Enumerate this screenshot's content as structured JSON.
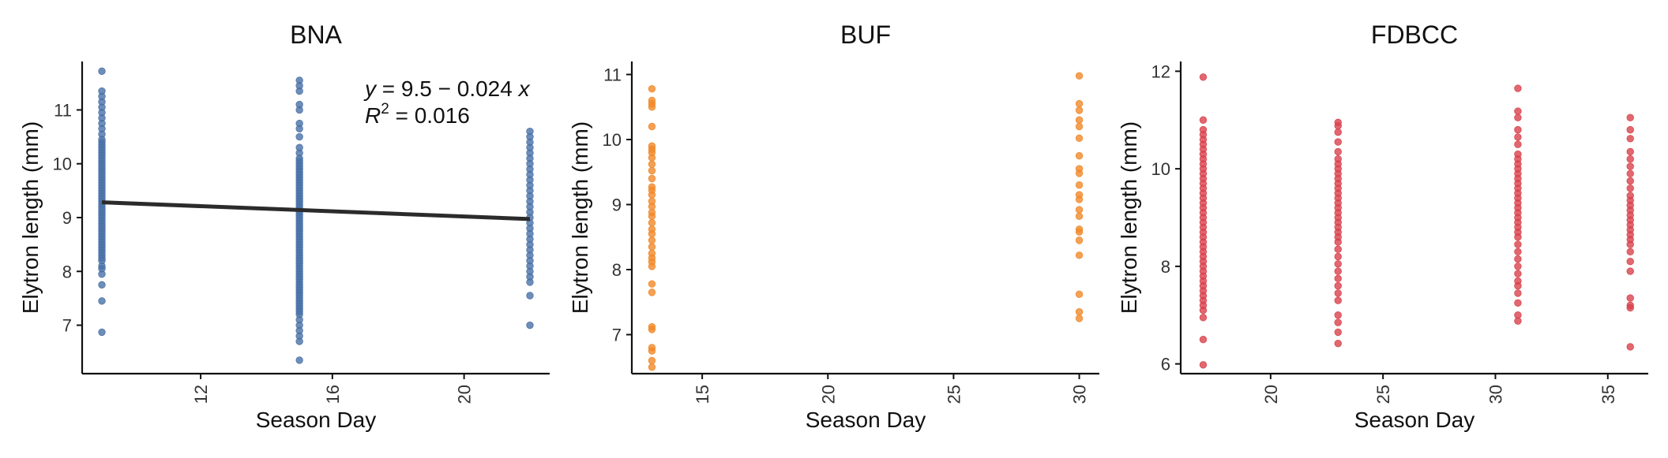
{
  "chart_data": [
    {
      "type": "scatter",
      "title": "BNA",
      "xlabel": "Season Day",
      "ylabel": "Elytron length (mm)",
      "xlim": [
        8.4,
        22.6
      ],
      "ylim": [
        6.1,
        11.9
      ],
      "xticks": [
        12,
        16,
        20
      ],
      "yticks": [
        7,
        8,
        9,
        10,
        11
      ],
      "color": "#4a72a8",
      "grid": false,
      "fit": {
        "slope": -0.024,
        "intercept": 9.5,
        "x_range": [
          9,
          22
        ]
      },
      "equation": {
        "y_label": "y",
        "formula": " = 9.5 − 0.024 ",
        "x_label": "x",
        "r2_label": "R",
        "r2_sup": "2",
        "r2_value": " = 0.016"
      },
      "series": [
        {
          "x": 9,
          "values": [
            6.87,
            7.45,
            7.75,
            7.95,
            8.05,
            8.1,
            8.2,
            8.25,
            8.3,
            8.35,
            8.4,
            8.45,
            8.5,
            8.55,
            8.6,
            8.65,
            8.7,
            8.75,
            8.8,
            8.85,
            8.9,
            8.95,
            9.0,
            9.05,
            9.1,
            9.15,
            9.2,
            9.25,
            9.3,
            9.35,
            9.4,
            9.45,
            9.5,
            9.55,
            9.6,
            9.65,
            9.7,
            9.75,
            9.8,
            9.85,
            9.9,
            9.95,
            10.0,
            10.05,
            10.1,
            10.15,
            10.2,
            10.25,
            10.3,
            10.35,
            10.4,
            10.45,
            10.55,
            10.65,
            10.75,
            10.85,
            10.95,
            11.05,
            11.15,
            11.25,
            11.35,
            11.72
          ]
        },
        {
          "x": 15,
          "values": [
            6.35,
            6.7,
            6.8,
            6.9,
            7.0,
            7.1,
            7.2,
            7.25,
            7.3,
            7.35,
            7.4,
            7.45,
            7.5,
            7.55,
            7.6,
            7.65,
            7.7,
            7.75,
            7.8,
            7.85,
            7.9,
            7.95,
            8.0,
            8.05,
            8.1,
            8.15,
            8.2,
            8.25,
            8.3,
            8.35,
            8.4,
            8.45,
            8.5,
            8.55,
            8.6,
            8.65,
            8.7,
            8.75,
            8.8,
            8.85,
            8.9,
            8.95,
            9.0,
            9.05,
            9.1,
            9.15,
            9.2,
            9.25,
            9.3,
            9.35,
            9.4,
            9.45,
            9.5,
            9.55,
            9.6,
            9.65,
            9.7,
            9.75,
            9.8,
            9.85,
            9.9,
            9.95,
            10.0,
            10.05,
            10.1,
            10.2,
            10.3,
            10.5,
            10.65,
            10.75,
            11.0,
            11.1,
            11.35,
            11.45,
            11.55
          ]
        },
        {
          "x": 22,
          "values": [
            7.0,
            7.55,
            7.8,
            7.9,
            8.0,
            8.1,
            8.2,
            8.3,
            8.4,
            8.5,
            8.6,
            8.7,
            8.8,
            8.9,
            9.0,
            9.1,
            9.2,
            9.3,
            9.4,
            9.5,
            9.6,
            9.7,
            9.8,
            9.9,
            10.0,
            10.1,
            10.2,
            10.3,
            10.4,
            10.5,
            10.6
          ]
        }
      ]
    },
    {
      "type": "scatter",
      "title": "BUF",
      "xlabel": "Season Day",
      "ylabel": "Elytron length (mm)",
      "xlim": [
        12.2,
        30.8
      ],
      "ylim": [
        6.4,
        11.2
      ],
      "xticks": [
        15,
        20,
        25,
        30
      ],
      "yticks": [
        7,
        8,
        9,
        10,
        11
      ],
      "color": "#f08a2c",
      "grid": false,
      "series": [
        {
          "x": 13,
          "values": [
            6.5,
            6.6,
            6.75,
            6.8,
            7.08,
            7.12,
            7.65,
            7.78,
            8.05,
            8.12,
            8.18,
            8.25,
            8.35,
            8.45,
            8.55,
            8.62,
            8.72,
            8.82,
            8.88,
            8.97,
            9.05,
            9.15,
            9.22,
            9.27,
            9.4,
            9.52,
            9.62,
            9.72,
            9.8,
            9.85,
            9.9,
            10.2,
            10.5,
            10.55,
            10.6,
            10.78
          ]
        },
        {
          "x": 30,
          "values": [
            7.25,
            7.35,
            7.62,
            8.22,
            8.45,
            8.58,
            8.62,
            8.82,
            8.92,
            9.08,
            9.15,
            9.3,
            9.48,
            9.55,
            9.75,
            10.02,
            10.2,
            10.3,
            10.45,
            10.55,
            10.98
          ]
        }
      ]
    },
    {
      "type": "scatter",
      "title": "FDBCC",
      "xlabel": "Season Day",
      "ylabel": "Elytron length (mm)",
      "xlim": [
        16.0,
        36.8
      ],
      "ylim": [
        5.8,
        12.2
      ],
      "xticks": [
        20,
        25,
        30,
        35
      ],
      "yticks": [
        6,
        8,
        10,
        12
      ],
      "color": "#d9424c",
      "grid": false,
      "series": [
        {
          "x": 17,
          "values": [
            5.98,
            6.5,
            6.95,
            7.1,
            7.2,
            7.3,
            7.4,
            7.5,
            7.6,
            7.7,
            7.8,
            7.9,
            8.0,
            8.1,
            8.2,
            8.3,
            8.4,
            8.5,
            8.6,
            8.7,
            8.8,
            8.9,
            9.0,
            9.1,
            9.2,
            9.3,
            9.4,
            9.5,
            9.6,
            9.7,
            9.8,
            9.9,
            10.0,
            10.1,
            10.2,
            10.3,
            10.4,
            10.5,
            10.6,
            10.7,
            10.8,
            11.0,
            11.88
          ]
        },
        {
          "x": 23,
          "values": [
            6.42,
            6.65,
            6.85,
            7.0,
            7.3,
            7.45,
            7.6,
            7.75,
            7.9,
            8.05,
            8.2,
            8.35,
            8.5,
            8.6,
            8.7,
            8.8,
            8.9,
            9.0,
            9.1,
            9.2,
            9.3,
            9.4,
            9.5,
            9.6,
            9.7,
            9.8,
            9.9,
            10.0,
            10.1,
            10.2,
            10.35,
            10.55,
            10.75,
            10.88,
            10.95
          ]
        },
        {
          "x": 31,
          "values": [
            6.88,
            7.0,
            7.25,
            7.45,
            7.6,
            7.7,
            7.85,
            8.0,
            8.15,
            8.3,
            8.45,
            8.6,
            8.7,
            8.8,
            8.9,
            9.0,
            9.1,
            9.2,
            9.3,
            9.4,
            9.5,
            9.6,
            9.7,
            9.8,
            9.9,
            10.0,
            10.1,
            10.2,
            10.3,
            10.5,
            10.65,
            10.8,
            11.05,
            11.18,
            11.65
          ]
        },
        {
          "x": 36,
          "values": [
            6.35,
            7.15,
            7.2,
            7.35,
            7.9,
            8.1,
            8.3,
            8.45,
            8.55,
            8.65,
            8.75,
            8.85,
            8.95,
            9.05,
            9.15,
            9.25,
            9.35,
            9.45,
            9.6,
            9.75,
            9.9,
            10.05,
            10.2,
            10.35,
            10.62,
            10.8,
            11.05
          ]
        }
      ]
    }
  ]
}
